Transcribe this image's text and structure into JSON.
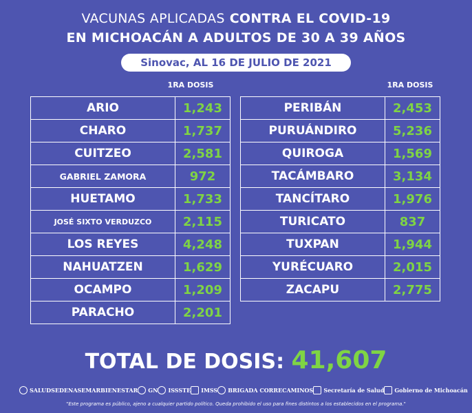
{
  "title": {
    "line1_light": "VACUNAS APLICADAS",
    "line1_bold": "CONTRA EL COVID-19",
    "line2": "EN MICHOACÁN A ADULTOS DE 30 A 39 AÑOS"
  },
  "subtitle": "Sinovac, AL 16 DE JULIO DE 2021",
  "column_header_left": "1RA DOSIS",
  "column_header_right": "1RA DOSIS",
  "left_rows": [
    {
      "municipio": "ARIO",
      "dosis": "1,243"
    },
    {
      "municipio": "CHARO",
      "dosis": "1,737"
    },
    {
      "municipio": "CUITZEO",
      "dosis": "2,581"
    },
    {
      "municipio": "GABRIEL ZAMORA",
      "dosis": "972"
    },
    {
      "municipio": "HUETAMO",
      "dosis": "1,733"
    },
    {
      "municipio": "JOSÉ SIXTO VERDUZCO",
      "dosis": "2,115"
    },
    {
      "municipio": "LOS REYES",
      "dosis": "4,248"
    },
    {
      "municipio": "NAHUATZEN",
      "dosis": "1,629"
    },
    {
      "municipio": "OCAMPO",
      "dosis": "1,209"
    },
    {
      "municipio": "PARACHO",
      "dosis": "2,201"
    }
  ],
  "right_rows": [
    {
      "municipio": "PERIBÁN",
      "dosis": "2,453"
    },
    {
      "municipio": "PURUÁNDIRO",
      "dosis": "5,236"
    },
    {
      "municipio": "QUIROGA",
      "dosis": "1,569"
    },
    {
      "municipio": "TACÁMBARO",
      "dosis": "3,134"
    },
    {
      "municipio": "TANCÍTARO",
      "dosis": "1,976"
    },
    {
      "municipio": "TURICATO",
      "dosis": "837"
    },
    {
      "municipio": "TUXPAN",
      "dosis": "1,944"
    },
    {
      "municipio": "YURÉCUARO",
      "dosis": "2,015"
    },
    {
      "municipio": "ZACAPU",
      "dosis": "2,775"
    }
  ],
  "total": {
    "label": "TOTAL DE DOSIS:",
    "value": "41,607"
  },
  "logos": {
    "salud": "SALUD",
    "sedena": "SEDENA",
    "semar": "SEMAR",
    "bienestar": "BIENESTAR",
    "gn": "GN",
    "issste": "ISSSTE",
    "imss": "IMSS",
    "brigada": "BRIGADA CORRECAMINOS",
    "secretaria_salud": "Secretaría de Salud",
    "gobierno": "Gobierno de Michoacán"
  },
  "footer": "\"Este programa es público, ajeno a cualquier partido político. Queda prohibido el uso para fines distintos a los establecidos en el programa.\"",
  "colors": {
    "background": "#4e55b0",
    "value_green": "#7fd444",
    "text": "#ffffff"
  }
}
